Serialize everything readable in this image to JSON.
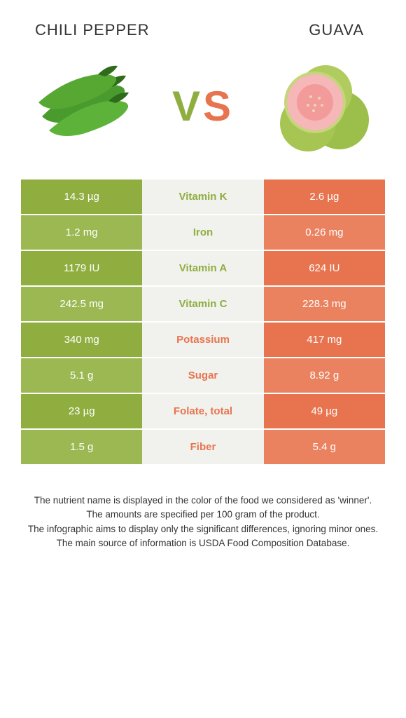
{
  "header": {
    "left_title": "CHILI PEPPER",
    "right_title": "GUAVA"
  },
  "vs": {
    "v": "V",
    "s": "S"
  },
  "colors": {
    "green": "#8fae3f",
    "green_alt": "#9bb852",
    "orange": "#e8744f",
    "orange_alt": "#ea8260",
    "mid_bg": "#f1f1ed",
    "text": "#333333",
    "white": "#ffffff"
  },
  "rows": [
    {
      "left": "14.3 µg",
      "mid": "Vitamin K",
      "right": "2.6 µg",
      "winner": "green"
    },
    {
      "left": "1.2 mg",
      "mid": "Iron",
      "right": "0.26 mg",
      "winner": "green"
    },
    {
      "left": "1179 IU",
      "mid": "Vitamin A",
      "right": "624 IU",
      "winner": "green"
    },
    {
      "left": "242.5 mg",
      "mid": "Vitamin C",
      "right": "228.3 mg",
      "winner": "green"
    },
    {
      "left": "340 mg",
      "mid": "Potassium",
      "right": "417 mg",
      "winner": "orange"
    },
    {
      "left": "5.1 g",
      "mid": "Sugar",
      "right": "8.92 g",
      "winner": "orange"
    },
    {
      "left": "23 µg",
      "mid": "Folate, total",
      "right": "49 µg",
      "winner": "orange"
    },
    {
      "left": "1.5 g",
      "mid": "Fiber",
      "right": "5.4 g",
      "winner": "orange"
    }
  ],
  "footer": {
    "l1": "The nutrient name is displayed in the color of the food we considered as 'winner'.",
    "l2": "The amounts are specified per 100 gram of the product.",
    "l3": "The infographic aims to display only the significant differences, ignoring minor ones.",
    "l4": "The main source of information is USDA Food Composition Database."
  }
}
